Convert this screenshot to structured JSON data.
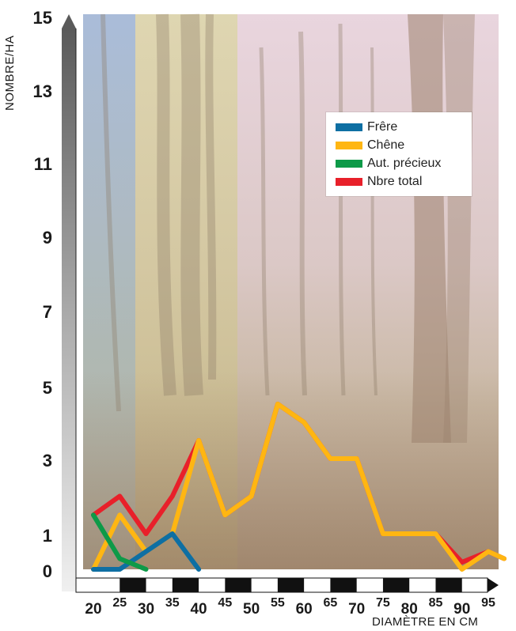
{
  "chart_data": {
    "type": "line",
    "xlabel": "DIAMÈTRE EN CM",
    "ylabel": "NOMBRE/HA",
    "ylim": [
      0,
      15
    ],
    "xlim": [
      20,
      95
    ],
    "y_ticks": [
      "0",
      "1",
      "3",
      "5",
      "7",
      "9",
      "11",
      "13",
      "15"
    ],
    "x_ticks": [
      "20",
      "25",
      "30",
      "35",
      "40",
      "45",
      "50",
      "55",
      "60",
      "65",
      "70",
      "75",
      "80",
      "85",
      "90",
      "95"
    ],
    "legend_position": "top-right",
    "series": [
      {
        "name": "Frêre",
        "color": "#0e6fa3",
        "x": [
          20,
          25,
          30,
          35,
          40
        ],
        "y": [
          0,
          0,
          0.5,
          1,
          0
        ]
      },
      {
        "name": "Chêne",
        "color": "#ffb612",
        "x": [
          20,
          25,
          30,
          35,
          40,
          45,
          50,
          55,
          60,
          65,
          70,
          75,
          80,
          85,
          90,
          95,
          98
        ],
        "y": [
          0,
          1.5,
          0.5,
          1,
          3.5,
          1.5,
          2,
          4.5,
          4,
          3,
          3,
          1,
          1,
          1,
          0,
          0.5,
          0.3
        ]
      },
      {
        "name": "Aut. précieux",
        "color": "#0d9a48",
        "x": [
          20,
          25,
          30
        ],
        "y": [
          1.5,
          0.3,
          0
        ]
      },
      {
        "name": "Nbre total",
        "color": "#e8202a",
        "x": [
          20,
          25,
          30,
          35,
          40,
          45,
          50,
          55,
          60,
          65,
          70,
          75,
          80,
          85,
          90,
          95,
          98
        ],
        "y": [
          1.5,
          2,
          1,
          2,
          3.5,
          1.5,
          2,
          4.5,
          4,
          3,
          3,
          1,
          1,
          1,
          0.2,
          0.5,
          0.3
        ]
      }
    ]
  }
}
